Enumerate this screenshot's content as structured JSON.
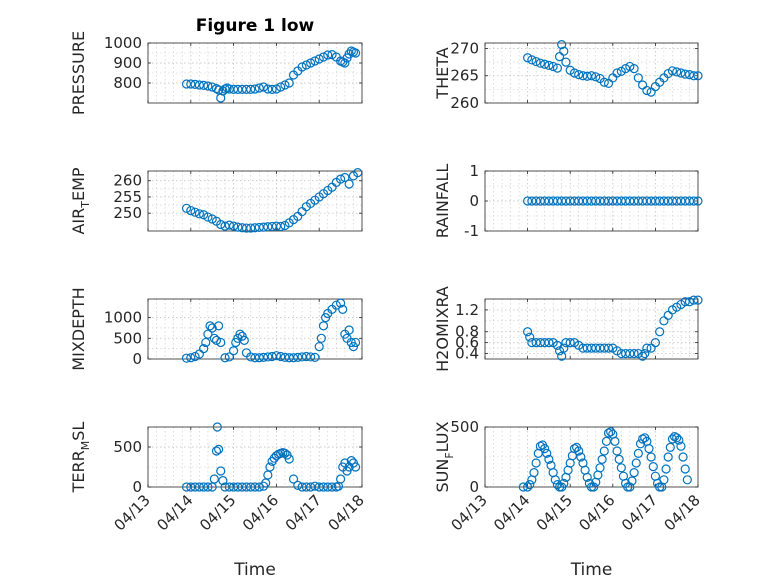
{
  "figure_title": "Figure 1 low",
  "colors": {
    "marker": "#0072bd",
    "axis": "#262626",
    "grid": "#c8c8c8"
  },
  "x_tick_labels": [
    "04/13",
    "04/14",
    "04/15",
    "04/16",
    "04/17",
    "04/18"
  ],
  "chart_data": [
    {
      "type": "scatter",
      "id": "pressure",
      "title": "Figure 1 low",
      "ylabel": "PRESSURE",
      "xlabel": "",
      "xlim": [
        0,
        5
      ],
      "ylim": [
        700,
        1000
      ],
      "yticks": [
        800,
        900,
        1000
      ],
      "yticklabels": [
        "800",
        "900",
        "1000"
      ],
      "x": [
        0.9,
        1.0,
        1.1,
        1.2,
        1.3,
        1.4,
        1.5,
        1.6,
        1.65,
        1.7,
        1.75,
        1.8,
        1.85,
        1.9,
        2.0,
        2.1,
        2.2,
        2.3,
        2.4,
        2.5,
        2.6,
        2.7,
        2.8,
        2.9,
        3.0,
        3.1,
        3.2,
        3.3,
        3.4,
        3.5,
        3.6,
        3.7,
        3.8,
        3.9,
        4.0,
        4.1,
        4.2,
        4.3,
        4.4,
        4.5,
        4.55,
        4.6,
        4.65,
        4.7,
        4.75,
        4.8,
        4.85
      ],
      "y": [
        795,
        795,
        793,
        790,
        788,
        785,
        780,
        772,
        765,
        725,
        760,
        770,
        775,
        770,
        768,
        768,
        768,
        768,
        768,
        770,
        775,
        780,
        770,
        768,
        770,
        780,
        790,
        800,
        840,
        860,
        880,
        890,
        900,
        910,
        920,
        930,
        940,
        942,
        930,
        910,
        905,
        900,
        925,
        945,
        960,
        955,
        950
      ]
    },
    {
      "type": "scatter",
      "id": "theta",
      "ylabel": "THETA",
      "xlabel": "",
      "xlim": [
        0,
        5
      ],
      "ylim": [
        260,
        271
      ],
      "yticks": [
        260,
        265,
        270
      ],
      "yticklabels": [
        "260",
        "265",
        "270"
      ],
      "x": [
        1.0,
        1.1,
        1.2,
        1.3,
        1.4,
        1.5,
        1.6,
        1.7,
        1.75,
        1.8,
        1.85,
        1.9,
        2.0,
        2.1,
        2.2,
        2.3,
        2.4,
        2.5,
        2.6,
        2.7,
        2.8,
        2.9,
        3.0,
        3.1,
        3.2,
        3.3,
        3.4,
        3.5,
        3.6,
        3.7,
        3.8,
        3.9,
        4.0,
        4.1,
        4.2,
        4.3,
        4.4,
        4.5,
        4.6,
        4.7,
        4.8,
        4.9,
        5.0
      ],
      "y": [
        268.3,
        267.9,
        267.6,
        267.3,
        267.1,
        266.9,
        266.7,
        266.4,
        268.5,
        270.7,
        269.5,
        267.5,
        266.0,
        265.5,
        265.2,
        265.0,
        264.9,
        265.0,
        264.8,
        264.5,
        263.8,
        263.6,
        264.6,
        265.5,
        265.8,
        266.3,
        266.7,
        266.3,
        264.6,
        263.3,
        262.3,
        262.0,
        263.0,
        263.8,
        264.6,
        265.4,
        265.9,
        265.7,
        265.5,
        265.3,
        265.2,
        265.0,
        265.0
      ]
    },
    {
      "type": "scatter",
      "id": "air_temp",
      "ylabel": "AIR_TEMP",
      "xlabel": "",
      "xlim": [
        0,
        5
      ],
      "ylim": [
        244.5,
        263
      ],
      "yticks": [
        250,
        255,
        260
      ],
      "yticklabels": [
        "250",
        "255",
        "260"
      ],
      "x": [
        0.9,
        1.0,
        1.1,
        1.2,
        1.3,
        1.4,
        1.5,
        1.6,
        1.7,
        1.8,
        1.9,
        2.0,
        2.1,
        2.2,
        2.3,
        2.4,
        2.5,
        2.6,
        2.7,
        2.8,
        2.9,
        3.0,
        3.1,
        3.2,
        3.3,
        3.4,
        3.5,
        3.6,
        3.7,
        3.8,
        3.9,
        4.0,
        4.1,
        4.2,
        4.3,
        4.4,
        4.5,
        4.6,
        4.7,
        4.8,
        4.9
      ],
      "y": [
        251.5,
        250.8,
        250.3,
        249.8,
        249.5,
        248.8,
        248.2,
        247.5,
        246.5,
        246.0,
        246.3,
        246.0,
        245.7,
        245.5,
        245.4,
        245.4,
        245.5,
        245.6,
        245.7,
        245.8,
        245.9,
        246.0,
        245.9,
        246.2,
        247.0,
        248.0,
        249.0,
        250.5,
        252.0,
        253.0,
        254.0,
        255.0,
        256.0,
        257.0,
        258.0,
        259.5,
        260.5,
        261.0,
        259.0,
        261.5,
        262.5
      ]
    },
    {
      "type": "scatter",
      "id": "rainfall",
      "ylabel": "RAINFALL",
      "xlabel": "",
      "xlim": [
        0,
        5
      ],
      "ylim": [
        -1,
        1
      ],
      "yticks": [
        -1,
        0,
        1
      ],
      "yticklabels": [
        "-1",
        "0",
        "1"
      ],
      "x": [
        1.0,
        1.1,
        1.2,
        1.3,
        1.4,
        1.5,
        1.6,
        1.7,
        1.8,
        1.9,
        2.0,
        2.1,
        2.2,
        2.3,
        2.4,
        2.5,
        2.6,
        2.7,
        2.8,
        2.9,
        3.0,
        3.1,
        3.2,
        3.3,
        3.4,
        3.5,
        3.6,
        3.7,
        3.8,
        3.9,
        4.0,
        4.1,
        4.2,
        4.3,
        4.4,
        4.5,
        4.6,
        4.7,
        4.8,
        4.9,
        5.0
      ],
      "y": [
        0,
        0,
        0,
        0,
        0,
        0,
        0,
        0,
        0,
        0,
        0,
        0,
        0,
        0,
        0,
        0,
        0,
        0,
        0,
        0,
        0,
        0,
        0,
        0,
        0,
        0,
        0,
        0,
        0,
        0,
        0,
        0,
        0,
        0,
        0,
        0,
        0,
        0,
        0,
        0,
        0
      ]
    },
    {
      "type": "scatter",
      "id": "mixdepth",
      "ylabel": "MIXDEPTH",
      "xlabel": "",
      "xlim": [
        0,
        5
      ],
      "ylim": [
        0,
        1450
      ],
      "yticks": [
        0,
        500,
        1000
      ],
      "yticklabels": [
        "0",
        "500",
        "1000"
      ],
      "x": [
        0.9,
        1.0,
        1.1,
        1.2,
        1.3,
        1.35,
        1.4,
        1.45,
        1.5,
        1.55,
        1.6,
        1.65,
        1.7,
        1.8,
        1.9,
        2.0,
        2.05,
        2.1,
        2.15,
        2.2,
        2.25,
        2.3,
        2.4,
        2.5,
        2.6,
        2.7,
        2.8,
        2.9,
        3.0,
        3.1,
        3.2,
        3.3,
        3.4,
        3.5,
        3.6,
        3.7,
        3.8,
        3.9,
        4.0,
        4.05,
        4.1,
        4.15,
        4.2,
        4.3,
        4.4,
        4.5,
        4.55,
        4.6,
        4.65,
        4.7,
        4.75,
        4.8,
        4.85
      ],
      "y": [
        20,
        30,
        60,
        120,
        250,
        400,
        600,
        800,
        750,
        500,
        450,
        800,
        400,
        30,
        50,
        200,
        400,
        500,
        600,
        550,
        450,
        150,
        50,
        30,
        30,
        40,
        50,
        60,
        80,
        60,
        40,
        30,
        30,
        40,
        50,
        60,
        50,
        40,
        300,
        500,
        800,
        1000,
        1100,
        1200,
        1300,
        1350,
        1200,
        600,
        500,
        700,
        400,
        300,
        400
      ]
    },
    {
      "type": "scatter",
      "id": "h2omixra",
      "ylabel": "H2OMIXRA",
      "xlabel": "",
      "xlim": [
        0,
        5
      ],
      "ylim": [
        0.3,
        1.4
      ],
      "yticks": [
        0.4,
        0.6,
        0.8,
        1.2
      ],
      "yticklabels": [
        "0.4",
        "0.6",
        "0.8",
        "1.2"
      ],
      "x": [
        1.0,
        1.05,
        1.1,
        1.2,
        1.3,
        1.4,
        1.5,
        1.6,
        1.7,
        1.75,
        1.8,
        1.85,
        1.9,
        2.0,
        2.1,
        2.2,
        2.3,
        2.4,
        2.5,
        2.6,
        2.7,
        2.8,
        2.9,
        3.0,
        3.1,
        3.2,
        3.3,
        3.4,
        3.5,
        3.6,
        3.7,
        3.75,
        3.8,
        3.9,
        4.0,
        4.1,
        4.2,
        4.3,
        4.4,
        4.5,
        4.6,
        4.7,
        4.8,
        4.9,
        5.0
      ],
      "y": [
        0.8,
        0.7,
        0.6,
        0.6,
        0.6,
        0.6,
        0.6,
        0.6,
        0.55,
        0.45,
        0.35,
        0.5,
        0.6,
        0.6,
        0.6,
        0.55,
        0.5,
        0.5,
        0.5,
        0.5,
        0.5,
        0.5,
        0.5,
        0.5,
        0.45,
        0.4,
        0.4,
        0.4,
        0.4,
        0.4,
        0.35,
        0.4,
        0.5,
        0.5,
        0.6,
        0.8,
        1.0,
        1.1,
        1.2,
        1.25,
        1.3,
        1.35,
        1.35,
        1.38,
        1.38
      ]
    },
    {
      "type": "scatter",
      "id": "terr_msl",
      "ylabel": "TERR_MSL",
      "xlabel": "Time",
      "xlim": [
        0,
        5
      ],
      "ylim": [
        0,
        750
      ],
      "yticks": [
        0,
        500
      ],
      "yticklabels": [
        "0",
        "500"
      ],
      "x": [
        0.9,
        1.0,
        1.1,
        1.2,
        1.3,
        1.4,
        1.5,
        1.55,
        1.6,
        1.62,
        1.65,
        1.7,
        1.75,
        1.8,
        1.9,
        2.0,
        2.1,
        2.2,
        2.3,
        2.4,
        2.5,
        2.6,
        2.7,
        2.75,
        2.8,
        2.85,
        2.9,
        2.95,
        3.0,
        3.05,
        3.1,
        3.15,
        3.2,
        3.25,
        3.3,
        3.4,
        3.5,
        3.6,
        3.7,
        3.8,
        3.9,
        4.0,
        4.1,
        4.2,
        4.3,
        4.4,
        4.45,
        4.5,
        4.55,
        4.6,
        4.65,
        4.7,
        4.75,
        4.8,
        4.85
      ],
      "y": [
        0,
        0,
        0,
        0,
        0,
        0,
        0,
        100,
        450,
        750,
        470,
        200,
        80,
        0,
        0,
        0,
        0,
        0,
        0,
        0,
        0,
        0,
        10,
        50,
        150,
        250,
        320,
        360,
        390,
        410,
        420,
        430,
        420,
        400,
        350,
        100,
        20,
        0,
        0,
        0,
        10,
        0,
        0,
        0,
        0,
        0,
        10,
        100,
        250,
        300,
        200,
        250,
        330,
        300,
        250
      ]
    },
    {
      "type": "scatter",
      "id": "sun_flux",
      "ylabel": "SUN_FLUX",
      "xlabel": "Time",
      "xlim": [
        0,
        5
      ],
      "ylim": [
        0,
        500
      ],
      "yticks": [
        0,
        500
      ],
      "yticklabels": [
        "0",
        "500"
      ],
      "x": [
        0.9,
        1.0,
        1.05,
        1.1,
        1.15,
        1.2,
        1.25,
        1.3,
        1.35,
        1.4,
        1.45,
        1.5,
        1.55,
        1.6,
        1.65,
        1.7,
        1.75,
        1.8,
        1.85,
        1.9,
        1.95,
        2.0,
        2.05,
        2.1,
        2.15,
        2.2,
        2.25,
        2.3,
        2.35,
        2.4,
        2.45,
        2.5,
        2.55,
        2.6,
        2.65,
        2.7,
        2.75,
        2.8,
        2.85,
        2.9,
        2.95,
        3.0,
        3.05,
        3.1,
        3.15,
        3.2,
        3.25,
        3.3,
        3.35,
        3.4,
        3.45,
        3.5,
        3.55,
        3.6,
        3.65,
        3.7,
        3.75,
        3.8,
        3.85,
        3.9,
        3.95,
        4.0,
        4.05,
        4.1,
        4.15,
        4.2,
        4.25,
        4.3,
        4.35,
        4.4,
        4.45,
        4.5,
        4.55,
        4.6,
        4.65,
        4.7,
        4.75
      ],
      "y": [
        0,
        0,
        20,
        60,
        120,
        200,
        280,
        340,
        350,
        320,
        280,
        230,
        180,
        120,
        60,
        20,
        0,
        0,
        30,
        80,
        140,
        200,
        260,
        320,
        330,
        300,
        250,
        200,
        140,
        80,
        30,
        0,
        0,
        40,
        100,
        160,
        230,
        300,
        380,
        450,
        460,
        440,
        380,
        300,
        230,
        160,
        90,
        30,
        0,
        0,
        50,
        120,
        200,
        280,
        360,
        400,
        410,
        380,
        320,
        250,
        170,
        90,
        30,
        0,
        0,
        60,
        150,
        250,
        330,
        400,
        420,
        410,
        390,
        340,
        250,
        150,
        60
      ]
    }
  ]
}
